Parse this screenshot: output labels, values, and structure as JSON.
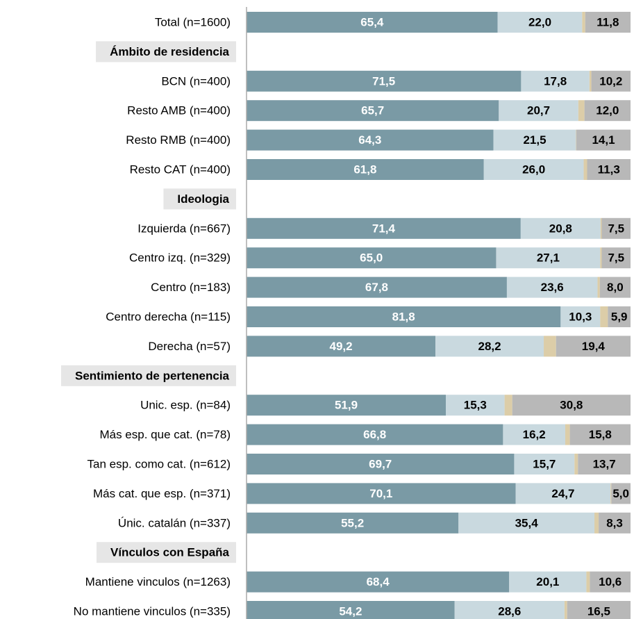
{
  "chart_data": {
    "type": "stacked_barh",
    "categories": [
      "Total (n=1600)",
      "Ámbito de residencia",
      "BCN (n=400)",
      "Resto AMB (n=400)",
      "Resto RMB (n=400)",
      "Resto CAT (n=400)",
      "Ideologia",
      "Izquierda (n=667)",
      "Centro izq. (n=329)",
      "Centro (n=183)",
      "Centro derecha (n=115)",
      "Derecha (n=57)",
      "Sentimiento de pertenencia",
      "Unic. esp. (n=84)",
      "Más esp. que cat. (n=78)",
      "Tan esp. como cat. (n=612)",
      "Más cat. que esp. (n=371)",
      "Únic. catalán (n=337)",
      "Vínculos con España",
      "Mantiene vinculos (n=1263)",
      "No mantiene vinculos (n=335)"
    ],
    "xlim": [
      0,
      100
    ],
    "series": [
      {
        "color": "#7a9aa5",
        "label_color": "#ffffff",
        "values": [
          65.4,
          null,
          71.5,
          65.7,
          64.3,
          61.8,
          null,
          71.4,
          65.0,
          67.8,
          81.8,
          49.2,
          null,
          51.9,
          66.8,
          69.7,
          70.1,
          55.2,
          null,
          68.4,
          54.2
        ],
        "value_labels": [
          "65,4",
          null,
          "71,5",
          "65,7",
          "64,3",
          "61,8",
          null,
          "71,4",
          "65,0",
          "67,8",
          "81,8",
          "49,2",
          null,
          "51,9",
          "66,8",
          "69,7",
          "70,1",
          "55,2",
          null,
          "68,4",
          "54,2"
        ]
      },
      {
        "color": "#c9d9df",
        "label_color": "#000000",
        "values": [
          22.0,
          null,
          17.8,
          20.7,
          21.5,
          26.0,
          null,
          20.8,
          27.1,
          23.6,
          10.3,
          28.2,
          null,
          15.3,
          16.2,
          15.7,
          24.7,
          35.4,
          null,
          20.1,
          28.6
        ],
        "value_labels": [
          "22,0",
          null,
          "17,8",
          "20,7",
          "21,5",
          "26,0",
          null,
          "20,8",
          "27,1",
          "23,6",
          "10,3",
          "28,2",
          null,
          "15,3",
          "16,2",
          "15,7",
          "24,7",
          "35,4",
          null,
          "20,1",
          "28,6"
        ]
      },
      {
        "color": "#dccda8",
        "values": [
          0.8,
          null,
          0.5,
          1.6,
          0.1,
          0.9,
          null,
          0.3,
          0.4,
          0.6,
          2.0,
          3.2,
          null,
          2.0,
          1.2,
          0.9,
          0.2,
          1.1,
          null,
          0.9,
          0.7
        ]
      },
      {
        "color": "#b8b8b8",
        "label_color": "#000000",
        "values": [
          11.8,
          null,
          10.2,
          12.0,
          14.1,
          11.3,
          null,
          7.5,
          7.5,
          8.0,
          5.9,
          19.4,
          null,
          30.8,
          15.8,
          13.7,
          5.0,
          8.3,
          null,
          10.6,
          16.5
        ],
        "value_labels": [
          "11,8",
          null,
          "10,2",
          "12,0",
          "14,1",
          "11,3",
          null,
          "7,5",
          "7,5",
          "8,0",
          "5,9",
          "19,4",
          null,
          "30,8",
          "15,8",
          "13,7",
          "5,0",
          "8,3",
          null,
          "10,6",
          "16,5"
        ]
      }
    ]
  }
}
